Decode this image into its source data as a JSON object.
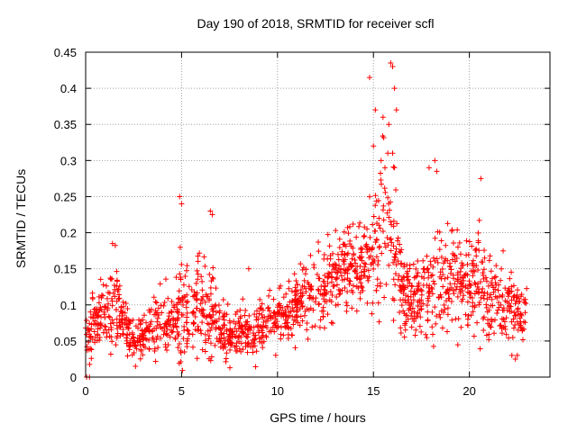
{
  "chart_data": {
    "type": "scatter",
    "title": "Day 190 of 2018, SRMTID for receiver scfl",
    "xlabel": "GPS time / hours",
    "ylabel": "SRMTID / TECUs",
    "xlim": [
      0,
      24.2
    ],
    "ylim": [
      0,
      0.45
    ],
    "x_ticks": [
      0,
      5,
      10,
      15,
      20
    ],
    "x_tick_labels": [
      "0",
      "5",
      "10",
      "15",
      "20"
    ],
    "y_ticks": [
      0,
      0.05,
      0.1,
      0.15,
      0.2,
      0.25,
      0.3,
      0.35,
      0.4,
      0.45
    ],
    "y_tick_labels": [
      "0",
      "0.05",
      "0.1",
      "0.15",
      "0.2",
      "0.25",
      "0.3",
      "0.35",
      "0.4",
      "0.45"
    ],
    "grid": true,
    "marker": "+",
    "color": "#ff0000",
    "profile": {
      "hours": [
        0,
        0.5,
        1,
        1.5,
        2,
        2.5,
        3,
        3.5,
        4,
        4.5,
        5,
        5.5,
        6,
        6.5,
        7,
        7.5,
        8,
        8.5,
        9,
        9.5,
        10,
        10.5,
        11,
        11.5,
        12,
        12.5,
        13,
        13.5,
        14,
        14.5,
        15,
        15.5,
        16,
        16.5,
        17,
        17.5,
        18,
        18.5,
        19,
        19.5,
        20,
        20.5,
        21,
        21.5,
        22,
        22.5,
        23
      ],
      "mean": [
        0.06,
        0.07,
        0.09,
        0.1,
        0.08,
        0.05,
        0.055,
        0.07,
        0.08,
        0.075,
        0.09,
        0.1,
        0.1,
        0.095,
        0.065,
        0.06,
        0.065,
        0.06,
        0.065,
        0.075,
        0.085,
        0.09,
        0.1,
        0.11,
        0.12,
        0.13,
        0.14,
        0.15,
        0.15,
        0.155,
        0.17,
        0.19,
        0.2,
        0.12,
        0.1,
        0.11,
        0.12,
        0.13,
        0.14,
        0.13,
        0.12,
        0.14,
        0.12,
        0.11,
        0.1,
        0.09,
        0.08
      ],
      "spread": [
        0.02,
        0.025,
        0.03,
        0.035,
        0.025,
        0.015,
        0.02,
        0.025,
        0.03,
        0.025,
        0.05,
        0.04,
        0.04,
        0.045,
        0.02,
        0.02,
        0.025,
        0.02,
        0.02,
        0.025,
        0.025,
        0.025,
        0.03,
        0.03,
        0.035,
        0.035,
        0.035,
        0.035,
        0.035,
        0.04,
        0.06,
        0.07,
        0.08,
        0.035,
        0.03,
        0.035,
        0.045,
        0.05,
        0.045,
        0.04,
        0.04,
        0.045,
        0.035,
        0.03,
        0.03,
        0.025,
        0.025
      ]
    },
    "highlights": [
      {
        "x": 14.8,
        "y": 0.415
      },
      {
        "x": 15.9,
        "y": 0.435
      },
      {
        "x": 16.0,
        "y": 0.43
      },
      {
        "x": 16.1,
        "y": 0.4
      },
      {
        "x": 15.1,
        "y": 0.37
      },
      {
        "x": 15.8,
        "y": 0.35
      },
      {
        "x": 16.2,
        "y": 0.37
      },
      {
        "x": 15.5,
        "y": 0.36
      },
      {
        "x": 15.0,
        "y": 0.32
      },
      {
        "x": 15.4,
        "y": 0.3
      },
      {
        "x": 15.6,
        "y": 0.29
      },
      {
        "x": 16.0,
        "y": 0.31
      },
      {
        "x": 17.9,
        "y": 0.29
      },
      {
        "x": 18.2,
        "y": 0.3
      },
      {
        "x": 18.3,
        "y": 0.285
      },
      {
        "x": 20.6,
        "y": 0.275
      },
      {
        "x": 4.9,
        "y": 0.25
      },
      {
        "x": 5.0,
        "y": 0.24
      },
      {
        "x": 6.5,
        "y": 0.23
      },
      {
        "x": 6.6,
        "y": 0.225
      },
      {
        "x": 1.4,
        "y": 0.185
      },
      {
        "x": 8.5,
        "y": 0.15
      },
      {
        "x": 0.05,
        "y": 0.0
      },
      {
        "x": 0.2,
        "y": 0.0
      },
      {
        "x": 2.6,
        "y": 0.015
      },
      {
        "x": 22.4,
        "y": 0.025
      },
      {
        "x": 22.5,
        "y": 0.03
      }
    ],
    "point_count": 1700,
    "seed": 190
  }
}
